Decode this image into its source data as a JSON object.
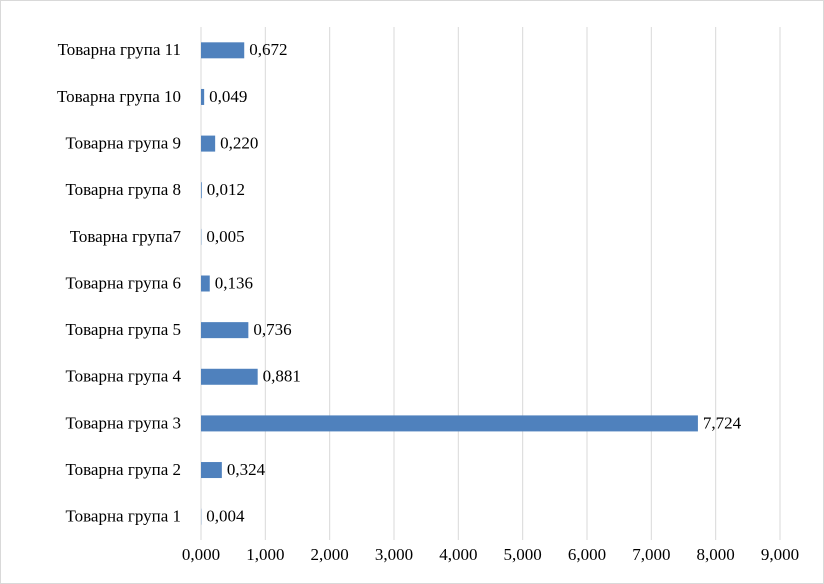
{
  "chart_data": {
    "type": "hbar",
    "categories": [
      "Товарна група 1",
      "Товарна група 2",
      "Товарна група 3",
      "Товарна група 4",
      "Товарна група 5",
      "Товарна група 6",
      "Товарна група7",
      "Товарна група 8",
      "Товарна група 9",
      "Товарна група 10",
      "Товарна група 11"
    ],
    "values": [
      0.004,
      0.324,
      7.724,
      0.881,
      0.736,
      0.136,
      0.005,
      0.012,
      0.22,
      0.049,
      0.672
    ],
    "value_labels": [
      "0,004",
      "0,324",
      "7,724",
      "0,881",
      "0,736",
      "0,136",
      "0,005",
      "0,012",
      "0,220",
      "0,049",
      "0,672"
    ],
    "color": "#4f81bd",
    "xlim": [
      0,
      9
    ],
    "xticks": [
      {
        "value": 0,
        "label": "0,000"
      },
      {
        "value": 1,
        "label": "1,000"
      },
      {
        "value": 2,
        "label": "2,000"
      },
      {
        "value": 3,
        "label": "3,000"
      },
      {
        "value": 4,
        "label": "4,000"
      },
      {
        "value": 5,
        "label": "5,000"
      },
      {
        "value": 6,
        "label": "6,000"
      },
      {
        "value": 7,
        "label": "7,000"
      },
      {
        "value": 8,
        "label": "8,000"
      },
      {
        "value": 9,
        "label": "9,000"
      }
    ],
    "grid": true
  }
}
